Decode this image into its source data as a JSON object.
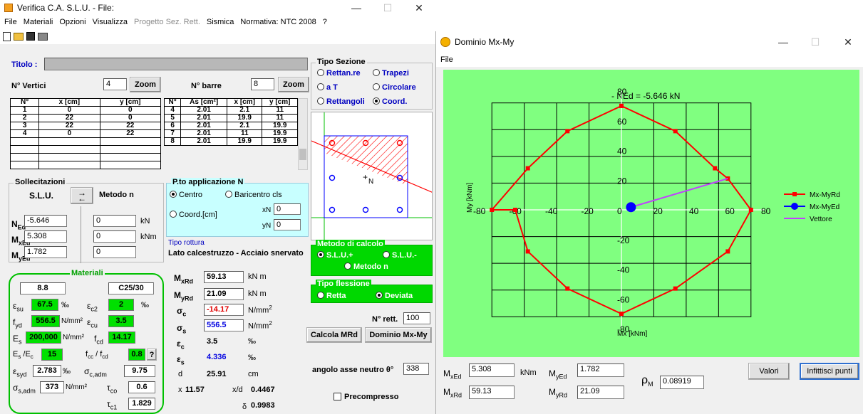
{
  "main": {
    "title": "Verifica C.A. S.L.U. - File:",
    "menu": [
      {
        "label": "File",
        "disabled": false
      },
      {
        "label": "Materiali",
        "disabled": false
      },
      {
        "label": "Opzioni",
        "disabled": false
      },
      {
        "label": "Visualizza",
        "disabled": false
      },
      {
        "label": "Progetto Sez. Rett.",
        "disabled": true
      },
      {
        "label": "Sismica",
        "disabled": false
      },
      {
        "label": "Normativa: NTC 2008",
        "disabled": false
      },
      {
        "label": "?",
        "disabled": false
      }
    ],
    "titolo_label": "Titolo :",
    "titolo_value": "",
    "n_vertici_label": "N° Vertici",
    "n_vertici_value": "4",
    "zoom1": "Zoom",
    "n_barre_label": "N° barre",
    "n_barre_value": "8",
    "zoom2": "Zoom",
    "vert_headers": [
      "N°",
      "x [cm]",
      "y [cm]"
    ],
    "vert_rows": [
      [
        "1",
        "0",
        "0"
      ],
      [
        "2",
        "22",
        "0"
      ],
      [
        "3",
        "22",
        "22"
      ],
      [
        "4",
        "0",
        "22"
      ],
      [
        "",
        "",
        ""
      ],
      [
        "",
        "",
        ""
      ],
      [
        "",
        "",
        ""
      ],
      [
        "",
        "",
        ""
      ]
    ],
    "bar_headers": [
      "N°",
      "As [cm²]",
      "x [cm]",
      "y [cm]"
    ],
    "bar_rows": [
      [
        "4",
        "2.01",
        "2.1",
        "11"
      ],
      [
        "5",
        "2.01",
        "19.9",
        "11"
      ],
      [
        "6",
        "2.01",
        "2.1",
        "19.9"
      ],
      [
        "7",
        "2.01",
        "11",
        "19.9"
      ],
      [
        "8",
        "2.01",
        "19.9",
        "19.9"
      ]
    ],
    "tipo_sezione": {
      "label": "Tipo Sezione",
      "opts": [
        "Rettan.re",
        "Trapezi",
        "a T",
        "Circolare",
        "Rettangoli",
        "Coord."
      ]
    },
    "section_n_label": "N",
    "soll": {
      "label": "Sollecitazioni",
      "slu": "S.L.U.",
      "metodo": "Metodo n",
      "ned_label": "N",
      "ned_sub": "Ed",
      "ned": "-5.646",
      "ned2": "0",
      "unit_n": "kN",
      "mxed_label": "M",
      "mxed_sub": "xEd",
      "mxed": "5.308",
      "mxed2": "0",
      "unit_m": "kNm",
      "myed_label": "M",
      "myed_sub": "yEd",
      "myed": "1.782",
      "myed2": "0"
    },
    "pto": {
      "label": "P.to applicazione N",
      "centro": "Centro",
      "baricentro": "Baricentro cls",
      "coord": "Coord.[cm]",
      "xn_label": "xN",
      "xn": "0",
      "yn_label": "yN",
      "yn": "0"
    },
    "rottura": {
      "label": "Tipo rottura",
      "value": "Lato calcestruzzo - Acciaio snervato"
    },
    "metodo": {
      "label": "Metodo di calcolo",
      "slu_plus": "S.L.U.+",
      "slu_minus": "S.L.U.-",
      "metodo_n": "Metodo n"
    },
    "flessione": {
      "label": "Tipo flessione",
      "retta": "Retta",
      "deviata": "Deviata"
    },
    "n_rett_label": "N° rett.",
    "n_rett": "100",
    "calcola_btn": "Calcola MRd",
    "dominio_btn": "Dominio Mx-My",
    "angolo_label": "angolo asse neutro  θ°",
    "angolo": "338",
    "precompresso": "Precompresso",
    "materiali": {
      "label": "Materiali",
      "acciaio_grade": "8.8",
      "cls_grade": "C25/30",
      "esu_sym": "ε",
      "esu_sub": "su",
      "esu": "67.5",
      "permil": "‰",
      "ec2_sym": "ε",
      "ec2_sub": "c2",
      "ec2": "2",
      "fyd_sym": "f",
      "fyd_sub": "yd",
      "fyd": "556.5",
      "nmm2": "N/mm²",
      "ecu_sym": "ε",
      "ecu_sub": "cu",
      "ecu": "3.5",
      "es_sym": "E",
      "es_sub": "s",
      "es": "200,000",
      "fcd_sym": "f",
      "fcd_sub": "cd",
      "fcd": "14.17",
      "esec_label": "E",
      "esec_sub1": "s",
      "esec_mid": " /E",
      "esec_sub2": "c",
      "esec": "15",
      "fccfcd": "f",
      "fccfcd_sub1": "cc",
      "fccfcd_mid": " / f",
      "fccfcd_sub2": "cd",
      "fccfcd_val": "0.8",
      "q": "?",
      "esyd_sym": "ε",
      "esyd_sub": "syd",
      "esyd": "2.783",
      "sigc_sym": "σ",
      "sigc_sub": "c,adm",
      "sigc": "9.75",
      "sigs_sym": "σ",
      "sigs_sub": "s,adm",
      "sigs": "373",
      "tco_sym": "τ",
      "tco_sub": "co",
      "tco": "0.6",
      "tc1_sym": "τ",
      "tc1_sub": "c1",
      "tc1": "1.829"
    },
    "results": {
      "mxrd_sub": "xRd",
      "mxrd": "59.13",
      "knm": "kN m",
      "myrd_sub": "yRd",
      "myrd": "21.09",
      "sigc_sub": "c",
      "sigc": "-14.17",
      "sigs_sub": "s",
      "sigs": "556.5",
      "nmm2": "N/mm",
      "sq": "2",
      "epsc_sub": "c",
      "epsc": "3.5",
      "epss_sub": "s",
      "epss": "4.336",
      "permil": "‰",
      "d_label": "d",
      "d": "25.91",
      "cm": "cm",
      "x_label": "x",
      "x": "11.57",
      "xd_label": "x/d",
      "xd": "0.4467",
      "delta_label": "δ",
      "delta": "0.9983"
    }
  },
  "dominio": {
    "title": "Dominio Mx-My",
    "menu_file": "File",
    "ned_label": "- NEd = -5.646 kN",
    "legend": [
      "Mx-MyRd",
      "Mx-MyEd",
      "Vettore"
    ],
    "mxed_label": "M",
    "mxed_sub": "xEd",
    "mxed": "5.308",
    "knm": "kNm",
    "myed_label": "M",
    "myed_sub": "yEd",
    "myed": "1.782",
    "rho_label": "ρ",
    "rho_sub": "M",
    "rho": "0.08919",
    "mxrd_label": "M",
    "mxrd_sub": "xRd",
    "mxrd": "59.13",
    "myrd_label": "M",
    "myrd_sub": "yRd",
    "myrd": "21.09",
    "valori": "Valori",
    "infittisci": "Infittisci punti"
  },
  "colors": {
    "accent_green": "#00e000",
    "plot_bg": "#80ff80",
    "panel_green": "#00d800",
    "domain_red": "#ff0000",
    "point_blue": "#0000ff",
    "vector_magenta": "#c040ff"
  },
  "chart_data": {
    "type": "line",
    "xlabel": "Mx [kNm]",
    "ylabel": "My [kNm]",
    "xlim": [
      -80,
      80
    ],
    "ylim": [
      -80,
      80
    ],
    "xticks": [
      -80,
      -60,
      -40,
      -20,
      0,
      20,
      40,
      60,
      80
    ],
    "yticks": [
      80,
      60,
      40,
      20,
      0,
      -20,
      -40,
      -60,
      -80
    ],
    "grid": true,
    "legend_position": "right",
    "series": [
      {
        "name": "Mx-MyRd",
        "color": "#ff0000",
        "x": [
          0,
          30,
          52,
          59.13,
          72,
          59.13,
          30,
          0,
          -30,
          -52,
          -59,
          -72,
          -52,
          -30,
          0
        ],
        "y": [
          70,
          53,
          28,
          21.09,
          0,
          -28,
          -53,
          -70,
          -53,
          -28,
          0,
          0,
          28,
          53,
          70
        ]
      },
      {
        "name": "Mx-MyEd",
        "color": "#0000ff",
        "x": [
          5.308
        ],
        "y": [
          1.782
        ]
      },
      {
        "name": "Vettore",
        "color": "#c040ff",
        "x": [
          5.308,
          59.13
        ],
        "y": [
          1.782,
          21.09
        ]
      }
    ]
  }
}
